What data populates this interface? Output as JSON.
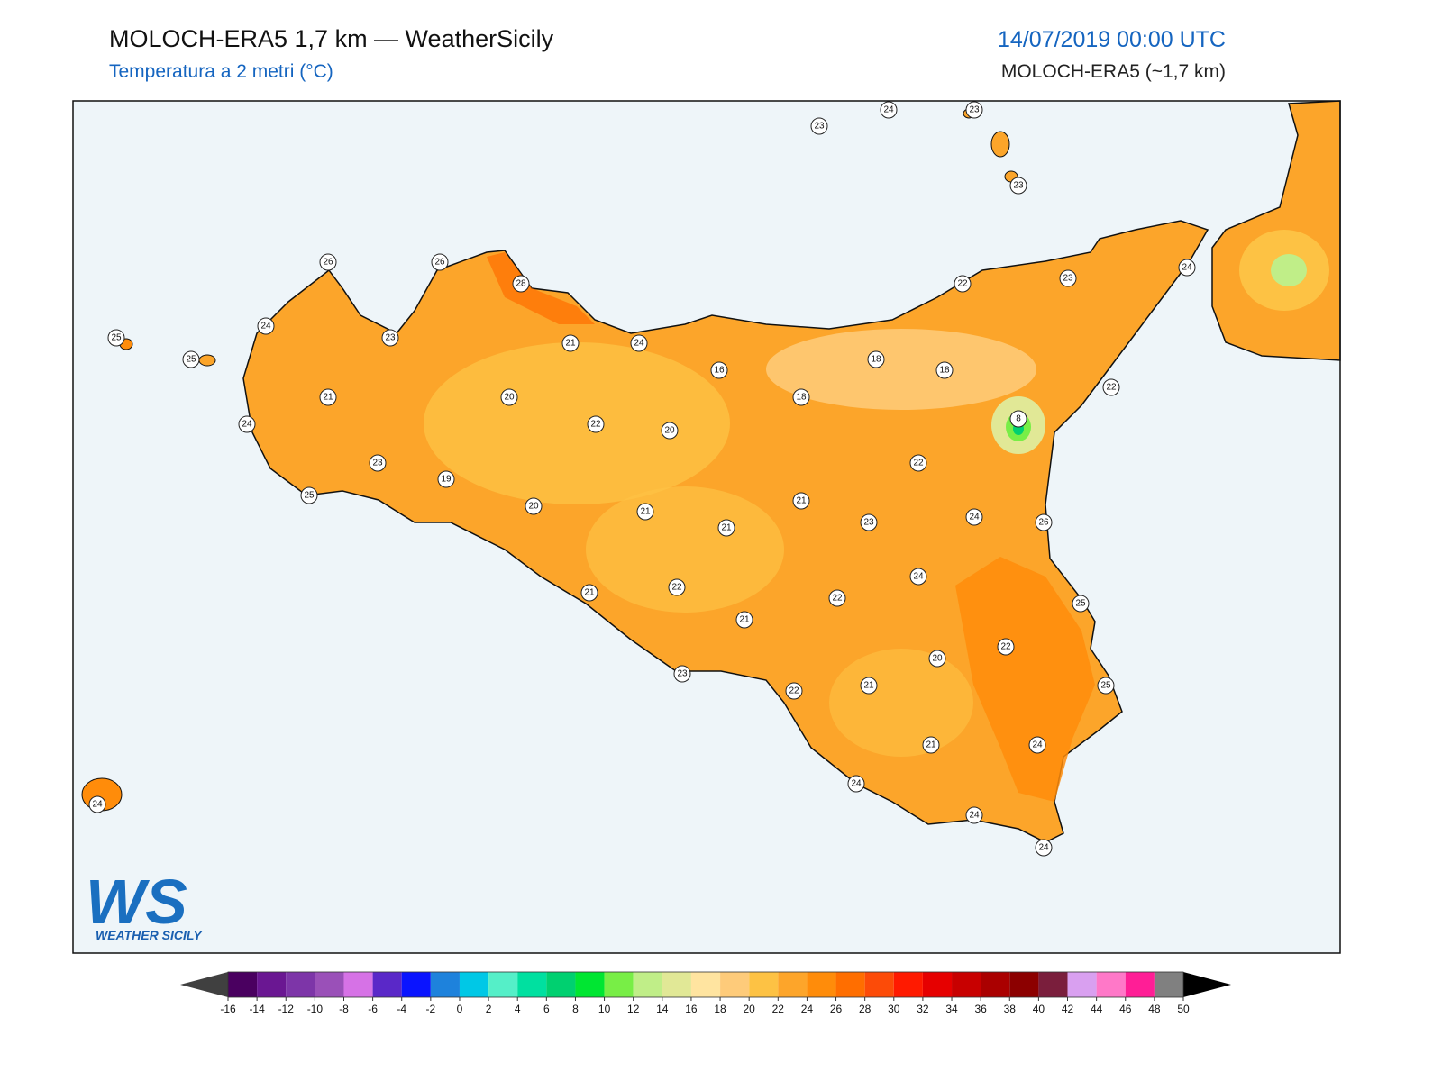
{
  "header": {
    "title": "MOLOCH-ERA5 1,7 km — WeatherSicily",
    "subtitle": "Temperatura a 2 metri (°C)",
    "date": "14/07/2019 00:00 UTC",
    "model": "MOLOCH-ERA5 (~1,7 km)"
  },
  "stations": [
    23,
    24,
    23,
    23,
    26,
    26,
    28,
    25,
    25,
    24,
    23,
    21,
    24,
    16,
    18,
    18,
    22,
    23,
    24,
    22,
    21,
    20,
    18,
    8,
    24,
    22,
    20,
    23,
    19,
    25,
    20,
    22,
    21,
    21,
    21,
    23,
    24,
    26,
    24,
    21,
    22,
    22,
    25,
    21,
    22,
    20,
    23,
    22,
    21,
    25,
    21,
    24,
    24,
    24,
    24,
    24
  ],
  "colorbar": {
    "ticks": [
      -16,
      -14,
      -12,
      -10,
      -8,
      -6,
      -4,
      -2,
      0,
      2,
      4,
      6,
      8,
      10,
      12,
      14,
      16,
      18,
      20,
      22,
      24,
      26,
      28,
      30,
      32,
      34,
      36,
      38,
      40,
      42,
      44,
      46,
      48,
      50
    ],
    "colors": [
      "#4a0060",
      "#6a1792",
      "#7d35a8",
      "#9a50b8",
      "#d672e6",
      "#5a28c8",
      "#0a14ff",
      "#1e82dc",
      "#00c8e6",
      "#55efc8",
      "#00e0a0",
      "#00d070",
      "#00e632",
      "#78ee46",
      "#c0ee88",
      "#e1e896",
      "#ffe4a0",
      "#fecb7a",
      "#fdc244",
      "#fda52a",
      "#ff8c0a",
      "#ff6e00",
      "#fc4b08",
      "#ff1a00",
      "#e60000",
      "#c80000",
      "#aa0000",
      "#8c0000",
      "#7a1e3c",
      "#d9a0f0",
      "#ff78c8",
      "#ff1e96",
      "#808080"
    ],
    "under_color": "#404040",
    "over_color": "#000000"
  },
  "logo": {
    "text": "WS",
    "caption": "WEATHER SICILY"
  }
}
